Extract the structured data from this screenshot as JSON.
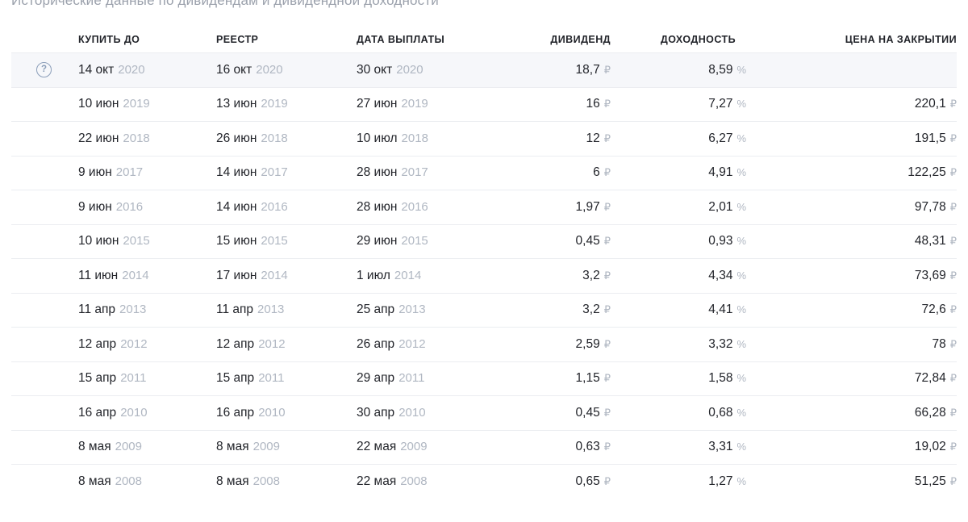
{
  "page": {
    "title": "Исторические данные по дивидендам и дивидендной доходности"
  },
  "colors": {
    "text_primary": "#22242a",
    "text_muted": "#b0b7c2",
    "title_gray": "#9ba1ac",
    "row_highlight_bg": "#f6f7fa",
    "row_border": "#ebedf1",
    "help_icon": "#8b9eb9"
  },
  "icons": {
    "help": "?"
  },
  "table": {
    "headers": [
      "КУПИТЬ ДО",
      "РЕЕСТР",
      "ДАТА ВЫПЛАТЫ",
      "ДИВИДЕНД",
      "ДОХОДНОСТЬ",
      "ЦЕНА НА ЗАКРЫТИИ"
    ],
    "currency_symbol": "₽",
    "percent_symbol": "%",
    "rows": [
      {
        "highlighted": true,
        "has_help_icon": true,
        "buy_date": "14 окт",
        "buy_year": "2020",
        "register_date": "16 окт",
        "register_year": "2020",
        "payment_date": "30 окт",
        "payment_year": "2020",
        "dividend": "18,7",
        "dividend_unit": "₽",
        "yield": "8,59",
        "yield_unit": "%",
        "price": "",
        "price_unit": ""
      },
      {
        "highlighted": false,
        "has_help_icon": false,
        "buy_date": "10 июн",
        "buy_year": "2019",
        "register_date": "13 июн",
        "register_year": "2019",
        "payment_date": "27 июн",
        "payment_year": "2019",
        "dividend": "16",
        "dividend_unit": "₽",
        "yield": "7,27",
        "yield_unit": "%",
        "price": "220,1",
        "price_unit": "₽"
      },
      {
        "highlighted": false,
        "has_help_icon": false,
        "buy_date": "22 июн",
        "buy_year": "2018",
        "register_date": "26 июн",
        "register_year": "2018",
        "payment_date": "10 июл",
        "payment_year": "2018",
        "dividend": "12",
        "dividend_unit": "₽",
        "yield": "6,27",
        "yield_unit": "%",
        "price": "191,5",
        "price_unit": "₽"
      },
      {
        "highlighted": false,
        "has_help_icon": false,
        "buy_date": "9 июн",
        "buy_year": "2017",
        "register_date": "14 июн",
        "register_year": "2017",
        "payment_date": "28 июн",
        "payment_year": "2017",
        "dividend": "6",
        "dividend_unit": "₽",
        "yield": "4,91",
        "yield_unit": "%",
        "price": "122,25",
        "price_unit": "₽"
      },
      {
        "highlighted": false,
        "has_help_icon": false,
        "buy_date": "9 июн",
        "buy_year": "2016",
        "register_date": "14 июн",
        "register_year": "2016",
        "payment_date": "28 июн",
        "payment_year": "2016",
        "dividend": "1,97",
        "dividend_unit": "₽",
        "yield": "2,01",
        "yield_unit": "%",
        "price": "97,78",
        "price_unit": "₽"
      },
      {
        "highlighted": false,
        "has_help_icon": false,
        "buy_date": "10 июн",
        "buy_year": "2015",
        "register_date": "15 июн",
        "register_year": "2015",
        "payment_date": "29 июн",
        "payment_year": "2015",
        "dividend": "0,45",
        "dividend_unit": "₽",
        "yield": "0,93",
        "yield_unit": "%",
        "price": "48,31",
        "price_unit": "₽"
      },
      {
        "highlighted": false,
        "has_help_icon": false,
        "buy_date": "11 июн",
        "buy_year": "2014",
        "register_date": "17 июн",
        "register_year": "2014",
        "payment_date": "1 июл",
        "payment_year": "2014",
        "dividend": "3,2",
        "dividend_unit": "₽",
        "yield": "4,34",
        "yield_unit": "%",
        "price": "73,69",
        "price_unit": "₽"
      },
      {
        "highlighted": false,
        "has_help_icon": false,
        "buy_date": "11 апр",
        "buy_year": "2013",
        "register_date": "11 апр",
        "register_year": "2013",
        "payment_date": "25 апр",
        "payment_year": "2013",
        "dividend": "3,2",
        "dividend_unit": "₽",
        "yield": "4,41",
        "yield_unit": "%",
        "price": "72,6",
        "price_unit": "₽"
      },
      {
        "highlighted": false,
        "has_help_icon": false,
        "buy_date": "12 апр",
        "buy_year": "2012",
        "register_date": "12 апр",
        "register_year": "2012",
        "payment_date": "26 апр",
        "payment_year": "2012",
        "dividend": "2,59",
        "dividend_unit": "₽",
        "yield": "3,32",
        "yield_unit": "%",
        "price": "78",
        "price_unit": "₽"
      },
      {
        "highlighted": false,
        "has_help_icon": false,
        "buy_date": "15 апр",
        "buy_year": "2011",
        "register_date": "15 апр",
        "register_year": "2011",
        "payment_date": "29 апр",
        "payment_year": "2011",
        "dividend": "1,15",
        "dividend_unit": "₽",
        "yield": "1,58",
        "yield_unit": "%",
        "price": "72,84",
        "price_unit": "₽"
      },
      {
        "highlighted": false,
        "has_help_icon": false,
        "buy_date": "16 апр",
        "buy_year": "2010",
        "register_date": "16 апр",
        "register_year": "2010",
        "payment_date": "30 апр",
        "payment_year": "2010",
        "dividend": "0,45",
        "dividend_unit": "₽",
        "yield": "0,68",
        "yield_unit": "%",
        "price": "66,28",
        "price_unit": "₽"
      },
      {
        "highlighted": false,
        "has_help_icon": false,
        "buy_date": "8 мая",
        "buy_year": "2009",
        "register_date": "8 мая",
        "register_year": "2009",
        "payment_date": "22 мая",
        "payment_year": "2009",
        "dividend": "0,63",
        "dividend_unit": "₽",
        "yield": "3,31",
        "yield_unit": "%",
        "price": "19,02",
        "price_unit": "₽"
      },
      {
        "highlighted": false,
        "has_help_icon": false,
        "buy_date": "8 мая",
        "buy_year": "2008",
        "register_date": "8 мая",
        "register_year": "2008",
        "payment_date": "22 мая",
        "payment_year": "2008",
        "dividend": "0,65",
        "dividend_unit": "₽",
        "yield": "1,27",
        "yield_unit": "%",
        "price": "51,25",
        "price_unit": "₽"
      }
    ]
  }
}
